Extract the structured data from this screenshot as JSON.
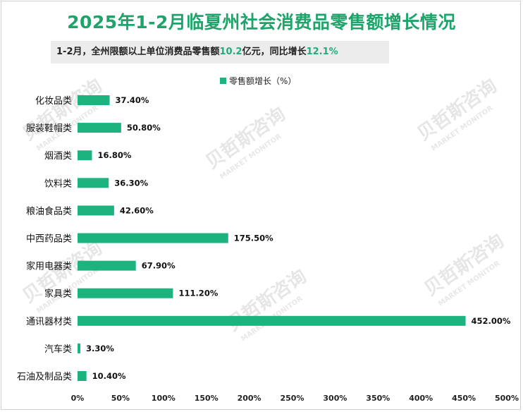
{
  "title": "2025年1-2月临夏州社会消费品零售额增长情况",
  "subtitle": {
    "prefix": "1-2月，全州限额以上单位消费品零售额",
    "value1": "10.2",
    "middle": "亿元，同比增长",
    "value2": "12.1%"
  },
  "watermark": {
    "brand": "贝哲斯咨询",
    "english": "MARKET MONITOR"
  },
  "colors": {
    "bar": "#1db37f",
    "title": "#1fa36b",
    "highlight": "#1fae79"
  },
  "chart_data": {
    "type": "bar",
    "orientation": "horizontal",
    "legend": "零售额增长（%）",
    "legend_position": "top-center",
    "categories": [
      "化妆品类",
      "服装鞋帽类",
      "烟酒类",
      "饮料类",
      "粮油食品类",
      "中西药品类",
      "家用电器类",
      "家具类",
      "通讯器材类",
      "汽车类",
      "石油及制品类"
    ],
    "values": [
      37.4,
      50.8,
      16.8,
      36.3,
      42.6,
      175.5,
      67.9,
      111.2,
      452.0,
      3.3,
      10.4
    ],
    "value_labels": [
      "37.40%",
      "50.80%",
      "16.80%",
      "36.30%",
      "42.60%",
      "175.50%",
      "67.90%",
      "111.20%",
      "452.00%",
      "3.30%",
      "10.40%"
    ],
    "xlim": [
      0,
      500
    ],
    "xticks": [
      "0%",
      "50%",
      "100%",
      "150%",
      "200%",
      "250%",
      "300%",
      "350%",
      "400%",
      "450%",
      "500%"
    ],
    "grid": false
  }
}
